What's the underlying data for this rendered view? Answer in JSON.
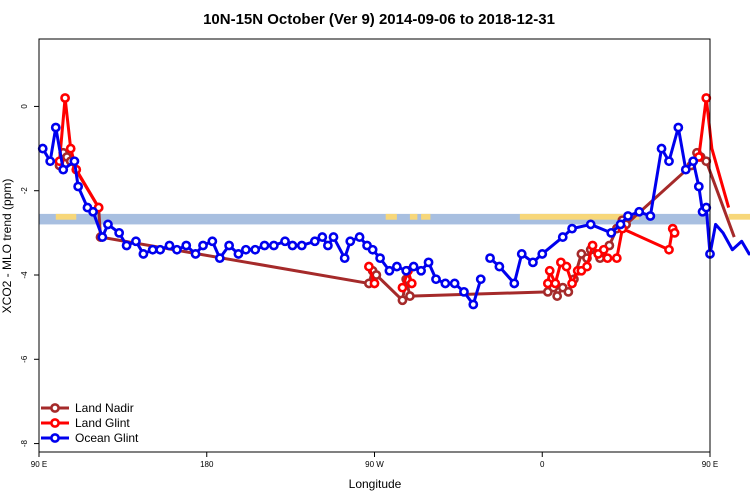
{
  "chart_data": {
    "type": "line",
    "title": "10N-15N October (Ver 9)   2014-09-06 to 2018-12-31",
    "xlabel": "Longitude",
    "ylabel": "XCO2 - MLO trend (ppm)",
    "xlim": [
      90,
      450
    ],
    "ylim": [
      -8.2,
      1.6
    ],
    "x_ticks": [
      {
        "value": 90,
        "label": "90 E"
      },
      {
        "value": 180,
        "label": "180"
      },
      {
        "value": 270,
        "label": "90 W"
      },
      {
        "value": 360,
        "label": "0"
      },
      {
        "value": 450,
        "label": "90 E"
      }
    ],
    "y_ticks": [
      {
        "value": 0,
        "label": "0"
      },
      {
        "value": -2,
        "label": "-2"
      },
      {
        "value": -4,
        "label": "-4"
      },
      {
        "value": -6,
        "label": "-6"
      },
      {
        "value": -8,
        "label": "-8"
      }
    ],
    "grid": false,
    "legend_position": "bottom-left",
    "land_band": {
      "y_top": -2.55,
      "y_bottom": -2.8,
      "color": "#a8bfe0",
      "land_color": "#f7d77a"
    },
    "land_segments": [
      [
        99,
        110
      ],
      [
        276,
        282
      ],
      [
        289,
        293
      ],
      [
        295,
        300
      ],
      [
        348,
        412
      ],
      [
        460,
        472
      ]
    ],
    "series": [
      {
        "name": "Land Nadir",
        "color": "#a52a2a",
        "x": [
          101,
          103,
          105,
          107,
          122,
          123,
          267,
          269,
          271,
          285,
          287,
          289,
          363,
          366,
          368,
          371,
          374,
          377,
          381,
          384,
          386,
          391,
          396,
          400,
          403,
          405,
          440,
          443,
          445,
          448,
          463
        ],
        "y": [
          -1.4,
          -1.1,
          -1.2,
          -1.3,
          -2.4,
          -3.1,
          -4.2,
          -3.9,
          -4.0,
          -4.6,
          -4.1,
          -4.5,
          -4.4,
          -4.3,
          -4.5,
          -4.3,
          -4.4,
          -4.1,
          -3.5,
          -3.6,
          -3.4,
          -3.6,
          -3.3,
          -2.9,
          -2.7,
          -2.8,
          -1.4,
          -1.1,
          -1.2,
          -1.3,
          -3.1
        ]
      },
      {
        "name": "Land Glint",
        "color": "#ff0000",
        "x": [
          101,
          104,
          107,
          110,
          122,
          267,
          270,
          285,
          288,
          290,
          363,
          364,
          367,
          370,
          373,
          376,
          379,
          381,
          384,
          387,
          390,
          393,
          395,
          400,
          403,
          428,
          430,
          431,
          444,
          448,
          451,
          460
        ],
        "y": [
          -1.3,
          0.2,
          -1.0,
          -1.5,
          -2.4,
          -3.8,
          -4.2,
          -4.3,
          -3.9,
          -4.2,
          -4.2,
          -3.9,
          -4.2,
          -3.7,
          -3.8,
          -4.2,
          -3.9,
          -3.9,
          -3.8,
          -3.3,
          -3.5,
          -3.4,
          -3.6,
          -3.6,
          -2.9,
          -3.4,
          -2.9,
          -3.0,
          -1.2,
          0.2,
          -1.0,
          -2.4
        ],
        "segments": [
          [
            0,
            5
          ],
          [
            5,
            7
          ],
          [
            7,
            10
          ],
          [
            10,
            28
          ],
          [
            28,
            32
          ]
        ]
      },
      {
        "name": "Ocean Glint",
        "color": "#0000ee",
        "x": [
          92,
          96,
          99,
          103,
          109,
          111,
          116,
          119,
          124,
          127,
          133,
          137,
          142,
          146,
          151,
          155,
          160,
          164,
          169,
          174,
          178,
          183,
          187,
          192,
          197,
          201,
          206,
          211,
          216,
          222,
          226,
          231,
          238,
          242,
          245,
          248,
          254,
          257,
          262,
          266,
          269,
          273,
          278,
          282,
          287,
          291,
          295,
          299,
          303,
          308,
          313,
          318,
          323,
          327,
          332,
          337,
          345,
          349,
          355,
          360,
          371,
          376,
          386,
          397,
          402,
          406,
          412,
          418,
          424,
          428,
          433,
          437,
          441,
          444,
          446,
          448,
          450,
          453,
          457,
          462,
          467,
          471,
          475,
          480,
          485,
          490,
          495,
          500
        ],
        "y": [
          -1.0,
          -1.3,
          -0.5,
          -1.5,
          -1.3,
          -1.9,
          -2.4,
          -2.5,
          -3.1,
          -2.8,
          -3.0,
          -3.3,
          -3.2,
          -3.5,
          -3.4,
          -3.4,
          -3.3,
          -3.4,
          -3.3,
          -3.5,
          -3.3,
          -3.2,
          -3.6,
          -3.3,
          -3.5,
          -3.4,
          -3.4,
          -3.3,
          -3.3,
          -3.2,
          -3.3,
          -3.3,
          -3.2,
          -3.1,
          -3.3,
          -3.1,
          -3.6,
          -3.2,
          -3.1,
          -3.3,
          -3.4,
          -3.6,
          -3.9,
          -3.8,
          -3.9,
          -3.8,
          -3.9,
          -3.7,
          -4.1,
          -4.2,
          -4.2,
          -4.4,
          -4.7,
          -4.1,
          -3.6,
          -3.8,
          -4.2,
          -3.5,
          -3.7,
          -3.5,
          -3.1,
          -2.9,
          -2.8,
          -3.0,
          -2.8,
          -2.6,
          -2.5,
          -2.6,
          -1.0,
          -1.3,
          -0.5,
          -1.5,
          -1.3,
          -1.9,
          -2.5,
          -2.4,
          -3.5,
          -2.8,
          -3.0,
          -3.4,
          -3.2,
          -3.5,
          -3.4,
          -3.4,
          -3.5,
          -3.4,
          -3.5,
          -3.4
        ],
        "segments": [
          [
            0,
            54
          ],
          [
            54,
            88
          ]
        ]
      }
    ]
  }
}
